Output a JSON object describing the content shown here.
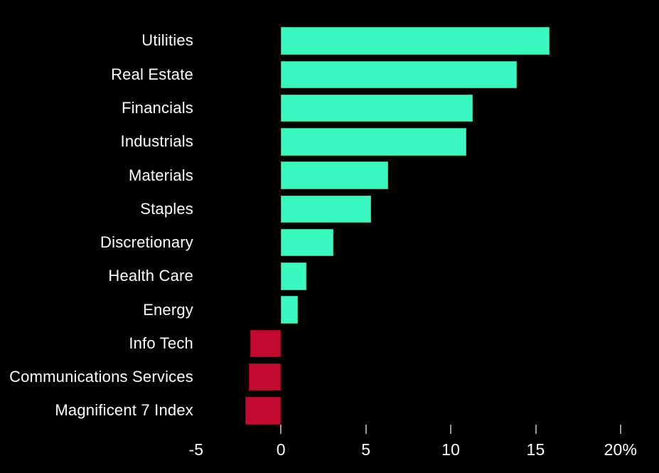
{
  "chart_data": {
    "type": "bar",
    "orientation": "horizontal",
    "title": "",
    "xlabel": "",
    "ylabel": "",
    "unit": "%",
    "xlim": [
      -5,
      20
    ],
    "grid": false,
    "legend": false,
    "categories": [
      "Utilities",
      "Real Estate",
      "Financials",
      "Industrials",
      "Materials",
      "Staples",
      "Discretionary",
      "Health Care",
      "Energy",
      "Info Tech",
      "Communications Services",
      "Magnificent 7 Index"
    ],
    "values": [
      15.8,
      13.9,
      11.3,
      10.9,
      6.3,
      5.3,
      3.1,
      1.5,
      1.0,
      -1.8,
      -1.9,
      -2.1
    ],
    "x_axis": {
      "ticks": [
        {
          "value": -5,
          "label": "-5",
          "mark": false
        },
        {
          "value": 0,
          "label": "0",
          "mark": true
        },
        {
          "value": 5,
          "label": "5",
          "mark": true
        },
        {
          "value": 10,
          "label": "10",
          "mark": true
        },
        {
          "value": 15,
          "label": "15",
          "mark": true
        },
        {
          "value": 20,
          "label": "20%",
          "mark": true
        }
      ]
    },
    "colors": {
      "positive": "#39f8c0",
      "negative": "#c40a2e",
      "background": "#000000",
      "text": "#ffffff",
      "tick": "#999999"
    }
  }
}
